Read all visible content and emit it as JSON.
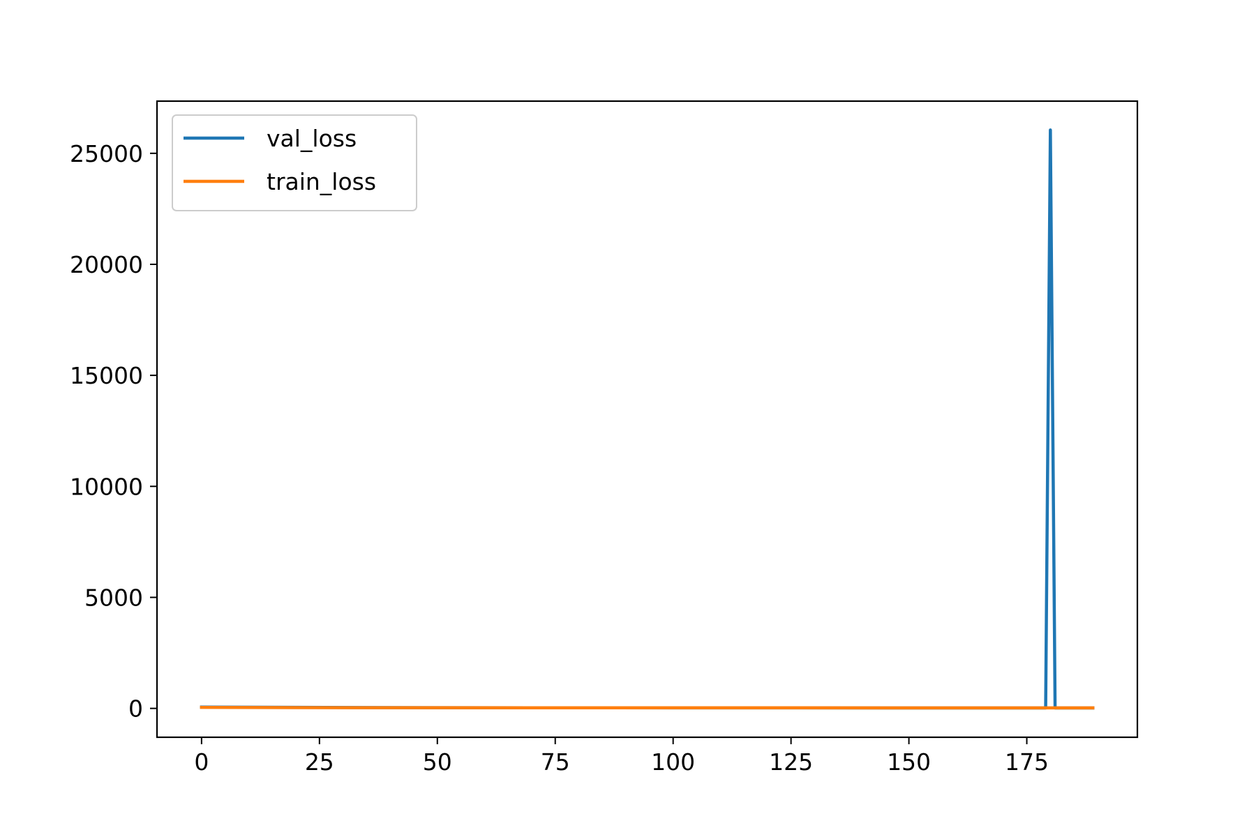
{
  "chart_data": {
    "type": "line",
    "title": "",
    "xlabel": "",
    "ylabel": "",
    "xlim": [
      -9.45,
      198.45
    ],
    "ylim": [
      -1300,
      27350
    ],
    "xticks": [
      0,
      25,
      50,
      75,
      100,
      125,
      150,
      175
    ],
    "xtick_labels": [
      "0",
      "25",
      "50",
      "75",
      "100",
      "125",
      "150",
      "175"
    ],
    "yticks": [
      0,
      5000,
      10000,
      15000,
      20000,
      25000
    ],
    "ytick_labels": [
      "0",
      "5000",
      "10000",
      "15000",
      "20000",
      "25000"
    ],
    "grid": false,
    "legend_position": "upper-left",
    "series": [
      {
        "name": "val_loss",
        "color": "#1f77b4",
        "points": [
          [
            0,
            60
          ],
          [
            50,
            30
          ],
          [
            100,
            25
          ],
          [
            150,
            20
          ],
          [
            178,
            20
          ],
          [
            179,
            20
          ],
          [
            180,
            26050
          ],
          [
            181,
            20
          ],
          [
            182,
            20
          ],
          [
            189,
            20
          ]
        ]
      },
      {
        "name": "train_loss",
        "color": "#ff7f0e",
        "points": [
          [
            0,
            45
          ],
          [
            20,
            35
          ],
          [
            40,
            30
          ],
          [
            80,
            28
          ],
          [
            120,
            26
          ],
          [
            160,
            24
          ],
          [
            189,
            22
          ]
        ]
      }
    ]
  }
}
